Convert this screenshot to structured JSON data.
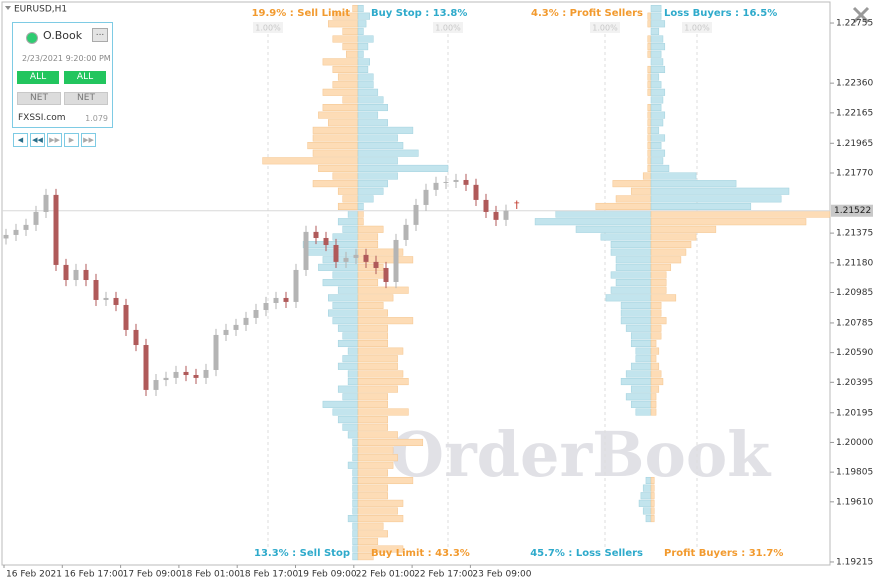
{
  "window": {
    "symbol": "EURUSD,H1"
  },
  "panel": {
    "title": "O.Book",
    "menu": "...",
    "datetime": "2/23/2021 9:20:00 PM",
    "buttons": [
      "ALL",
      "ALL",
      "NET",
      "NET"
    ],
    "site": "FXSSI.com",
    "version": "1.079"
  },
  "watermark": "OrderBook",
  "chart_data": {
    "type": "orderbook",
    "ylim": [
      1.19195,
      1.2288
    ],
    "yticks": [
      1.22755,
      {
        "value": 1.2236,
        "label": "1.22360"
      },
      1.22165,
      1.21965,
      {
        "value": 1.2177,
        "label": "1.21770"
      },
      1.21375,
      {
        "value": 1.2118,
        "label": "1.21180"
      },
      1.20985,
      1.20785,
      {
        "value": 1.2059,
        "label": "1.20590"
      },
      1.20395,
      1.20195,
      {
        "value": 1.2,
        "label": "1.20000"
      },
      1.19805,
      {
        "value": 1.1961,
        "label": "1.19610"
      },
      1.19215
    ],
    "x_labels": [
      "16 Feb 2021",
      "16 Feb 17:00",
      "17 Feb 09:00",
      "18 Feb 01:00",
      "18 Feb 17:00",
      "19 Feb 09:00",
      "22 Feb 01:00",
      "22 Feb 17:00",
      "23 Feb 09:00"
    ],
    "last_price": 1.21522,
    "colors": {
      "up": "#b4b4b4",
      "down": "#b05a5a",
      "orange": "#fddcb6",
      "blue": "#c2e4ed",
      "orange_text": "#f29a2e",
      "blue_text": "#2eaacb"
    },
    "candles": [
      [
        1.2134,
        1.21403,
        1.213,
        1.21363
      ],
      [
        1.21363,
        1.21436,
        1.21323,
        1.21396
      ],
      [
        1.21396,
        1.21469,
        1.21356,
        1.21429
      ],
      [
        1.21429,
        1.21554,
        1.21389,
        1.21514
      ],
      [
        1.21514,
        1.21666,
        1.21474,
        1.21626
      ],
      [
        1.21626,
        1.21666,
        1.21126,
        1.21166
      ],
      [
        1.21166,
        1.21206,
        1.21027,
        1.21067
      ],
      [
        1.21067,
        1.21173,
        1.21027,
        1.21133
      ],
      [
        1.21133,
        1.21173,
        1.21027,
        1.21067
      ],
      [
        1.21067,
        1.21107,
        1.20896,
        1.20936
      ],
      [
        1.20936,
        1.20989,
        1.20896,
        1.20949
      ],
      [
        1.20949,
        1.20989,
        1.20863,
        1.20903
      ],
      [
        1.20903,
        1.20943,
        1.20699,
        1.20739
      ],
      [
        1.20739,
        1.20779,
        1.206,
        1.2064
      ],
      [
        1.2064,
        1.2068,
        1.20305,
        1.20345
      ],
      [
        1.20345,
        1.2045,
        1.20305,
        1.2041
      ],
      [
        1.2041,
        1.20464,
        1.2037,
        1.20424
      ],
      [
        1.20424,
        1.20503,
        1.20384,
        1.20463
      ],
      [
        1.20463,
        1.20503,
        1.20403,
        1.20443
      ],
      [
        1.20443,
        1.20483,
        1.20384,
        1.20424
      ],
      [
        1.20424,
        1.20516,
        1.20384,
        1.20476
      ],
      [
        1.20476,
        1.20746,
        1.20436,
        1.20706
      ],
      [
        1.20706,
        1.20779,
        1.20666,
        1.20739
      ],
      [
        1.20739,
        1.20812,
        1.20699,
        1.20772
      ],
      [
        1.20772,
        1.20858,
        1.20732,
        1.20818
      ],
      [
        1.20818,
        1.2091,
        1.20778,
        1.2087
      ],
      [
        1.2087,
        1.20956,
        1.2083,
        1.20916
      ],
      [
        1.20916,
        1.20989,
        1.20876,
        1.20949
      ],
      [
        1.20949,
        1.20989,
        1.20883,
        1.20923
      ],
      [
        1.20923,
        1.21173,
        1.20883,
        1.21133
      ],
      [
        1.21133,
        1.21423,
        1.21093,
        1.21383
      ],
      [
        1.21383,
        1.21423,
        1.21303,
        1.21343
      ],
      [
        1.21343,
        1.21383,
        1.21257,
        1.21297
      ],
      [
        1.21297,
        1.21337,
        1.21146,
        1.21186
      ],
      [
        1.21186,
        1.21252,
        1.21146,
        1.21212
      ],
      [
        1.21212,
        1.21272,
        1.21172,
        1.21232
      ],
      [
        1.21232,
        1.21272,
        1.21146,
        1.21186
      ],
      [
        1.21186,
        1.21226,
        1.21106,
        1.21146
      ],
      [
        1.21146,
        1.21186,
        1.21014,
        1.21054
      ],
      [
        1.21054,
        1.2137,
        1.21014,
        1.2133
      ],
      [
        1.2133,
        1.21469,
        1.2129,
        1.21429
      ],
      [
        1.21429,
        1.216,
        1.21389,
        1.2156
      ],
      [
        1.2156,
        1.21699,
        1.2152,
        1.21659
      ],
      [
        1.21659,
        1.21745,
        1.21619,
        1.21705
      ],
      [
        1.21705,
        1.21751,
        1.21665,
        1.21711
      ],
      [
        1.21711,
        1.21764,
        1.21671,
        1.21724
      ],
      [
        1.21724,
        1.21764,
        1.21652,
        1.21692
      ],
      [
        1.21692,
        1.21732,
        1.21553,
        1.21593
      ],
      [
        1.21593,
        1.21633,
        1.21474,
        1.21514
      ],
      [
        1.21514,
        1.21554,
        1.21422,
        1.21462
      ],
      [
        1.21462,
        1.21562,
        1.21422,
        1.21522
      ]
    ],
    "levels": [
      1.2285,
      1.228,
      1.2275,
      1.227,
      1.2265,
      1.226,
      1.2255,
      1.225,
      1.2245,
      1.224,
      1.2235,
      1.223,
      1.2225,
      1.222,
      1.2215,
      1.221,
      1.2205,
      1.22,
      1.2195,
      1.219,
      1.2185,
      1.218,
      1.2175,
      1.217,
      1.2165,
      1.216,
      1.2155,
      1.215,
      1.2145,
      1.214,
      1.2135,
      1.213,
      1.2125,
      1.212,
      1.2115,
      1.211,
      1.2105,
      1.21,
      1.2095,
      1.209,
      1.2085,
      1.208,
      1.2075,
      1.207,
      1.2065,
      1.206,
      1.2055,
      1.205,
      1.2045,
      1.204,
      1.2035,
      1.203,
      1.2025,
      1.202,
      1.2015,
      1.201,
      1.2005,
      1.2,
      1.1995,
      1.199,
      1.1985,
      1.198,
      1.1975,
      1.197,
      1.1965,
      1.196,
      1.1955,
      1.195,
      1.1945,
      1.194,
      1.1935,
      1.193,
      1.1925
    ],
    "books": [
      {
        "top_left": "19.9% : Sell Limit",
        "top_right": "Buy Stop : 13.8%",
        "bottom_left": "13.3% : Sell Stop",
        "bottom_right": "Buy Limit : 43.3%",
        "xticks": [
          {
            "value": 1,
            "label": "1.00%"
          },
          {
            "value": 1,
            "label": "1.00%"
          }
        ],
        "left": [
          0.06,
          0.28,
          0.33,
          0.17,
          0.28,
          0.17,
          0.13,
          0.39,
          0.28,
          0.22,
          0.28,
          0.39,
          0.17,
          0.39,
          0.44,
          0.33,
          0.5,
          0.5,
          0.56,
          0.5,
          1.06,
          0.44,
          0.28,
          0.5,
          0.22,
          0.17,
          0.22,
          0.11,
          0.22,
          0.17,
          0.28,
          0.61,
          0.56,
          0.39,
          0.44,
          0.28,
          0.39,
          0.22,
          0.33,
          0.28,
          0.33,
          0.28,
          0.22,
          0.17,
          0.22,
          0.11,
          0.17,
          0.22,
          0.11,
          0.11,
          0.22,
          0.17,
          0.39,
          0.28,
          0.22,
          0.17,
          0.11,
          0.06,
          0.06,
          0.06,
          0.11,
          0.06,
          0.06,
          0.06,
          0.06,
          0.06,
          0.06,
          0.11,
          0.06,
          0.06,
          0.06,
          0.06,
          0.06
        ],
        "right": [
          0.06,
          0.13,
          0.09,
          0.06,
          0.17,
          0.11,
          0.06,
          0.13,
          0.11,
          0.17,
          0.17,
          0.22,
          0.28,
          0.33,
          0.22,
          0.33,
          0.61,
          0.44,
          0.5,
          0.67,
          0.44,
          1.0,
          0.44,
          0.33,
          0.28,
          0.17,
          0.06,
          0.06,
          0.06,
          0.28,
          0.22,
          0.22,
          0.5,
          0.61,
          0.28,
          0.33,
          0.22,
          0.56,
          0.39,
          0.28,
          0.33,
          0.61,
          0.33,
          0.33,
          0.33,
          0.5,
          0.44,
          0.44,
          0.5,
          0.56,
          0.44,
          0.33,
          0.33,
          0.56,
          0.33,
          0.33,
          0.44,
          0.72,
          0.39,
          0.44,
          0.39,
          0.33,
          0.61,
          0.33,
          0.33,
          0.5,
          0.44,
          0.5,
          0.28,
          0.33,
          0.22,
          0.5,
          0.17
        ]
      },
      {
        "top_left": "4.3% : Profit Sellers",
        "top_right": "Loss Buyers : 16.5%",
        "bottom_left": "45.7% : Loss Sellers",
        "bottom_right": "Profit Buyers : 31.7%",
        "xticks": [
          {
            "value": 1,
            "label": "1.00%"
          },
          {
            "value": 1,
            "label": "1.00%"
          }
        ],
        "left": [
          0,
          0.07,
          0.07,
          0,
          0.07,
          0.07,
          0.07,
          0,
          0.07,
          0.07,
          0.07,
          0.07,
          0,
          0.07,
          0.07,
          0.07,
          0.07,
          0.07,
          0.07,
          0.07,
          0.07,
          0.07,
          0.17,
          0.83,
          0.43,
          0.76,
          1.2,
          2.07,
          2.52,
          1.63,
          1.09,
          0.87,
          0.87,
          0.76,
          0.76,
          0.87,
          0.76,
          0.87,
          0.98,
          0.65,
          0.65,
          0.65,
          0.54,
          0.43,
          0.43,
          0.33,
          0.33,
          0.43,
          0.54,
          0.65,
          0.43,
          0.54,
          0.43,
          0.33,
          0,
          0,
          0,
          0,
          0,
          0,
          0,
          0,
          0.11,
          0.17,
          0.22,
          0.26,
          0.17,
          0.11,
          0,
          0,
          0,
          0,
          0
        ],
        "right": [
          0.22,
          0.22,
          0.3,
          0.17,
          0.26,
          0.3,
          0.22,
          0.26,
          0.3,
          0.17,
          0.22,
          0.3,
          0.26,
          0.22,
          0.3,
          0.26,
          0.17,
          0.3,
          0.22,
          0.3,
          0.26,
          0.39,
          0.98,
          1.85,
          3.0,
          2.83,
          2.17,
          3.89,
          3.37,
          1.41,
          0.98,
          0.87,
          0.76,
          0.65,
          0.43,
          0.33,
          0.33,
          0.33,
          0.54,
          0.22,
          0.22,
          0.33,
          0.22,
          0.22,
          0.11,
          0.17,
          0.11,
          0.17,
          0.22,
          0.26,
          0.17,
          0.11,
          0.11,
          0.11,
          0,
          0,
          0,
          0,
          0,
          0,
          0,
          0,
          0.07,
          0.07,
          0.07,
          0.07,
          0.07,
          0.07,
          0,
          0,
          0,
          0,
          0
        ]
      }
    ]
  }
}
